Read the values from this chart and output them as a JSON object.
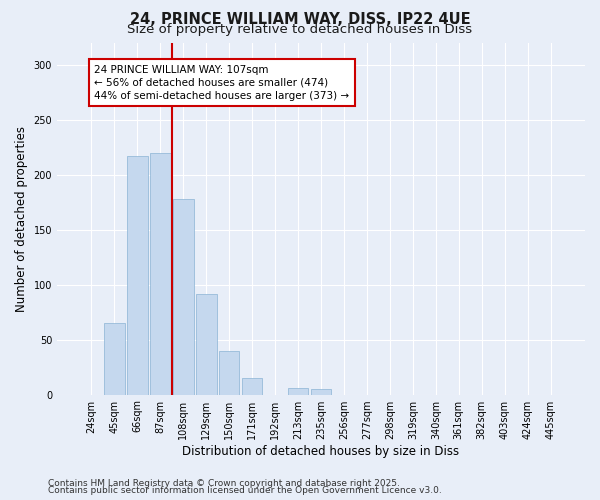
{
  "title_line1": "24, PRINCE WILLIAM WAY, DISS, IP22 4UE",
  "title_line2": "Size of property relative to detached houses in Diss",
  "xlabel": "Distribution of detached houses by size in Diss",
  "ylabel": "Number of detached properties",
  "categories": [
    "24sqm",
    "45sqm",
    "66sqm",
    "87sqm",
    "108sqm",
    "129sqm",
    "150sqm",
    "171sqm",
    "192sqm",
    "213sqm",
    "235sqm",
    "256sqm",
    "277sqm",
    "298sqm",
    "319sqm",
    "340sqm",
    "361sqm",
    "382sqm",
    "403sqm",
    "424sqm",
    "445sqm"
  ],
  "values": [
    0,
    65,
    217,
    220,
    178,
    91,
    40,
    15,
    0,
    6,
    5,
    0,
    0,
    0,
    0,
    0,
    0,
    0,
    0,
    0,
    0
  ],
  "bar_color": "#c5d8ee",
  "bar_edgecolor": "#8ab4d4",
  "background_color": "#e8eef8",
  "grid_color": "#ffffff",
  "annotation_box_color": "#ffffff",
  "annotation_box_edgecolor": "#cc0000",
  "annotation_line1": "24 PRINCE WILLIAM WAY: 107sqm",
  "annotation_line2": "← 56% of detached houses are smaller (474)",
  "annotation_line3": "44% of semi-detached houses are larger (373) →",
  "vline_color": "#cc0000",
  "ylim": [
    0,
    320
  ],
  "yticks": [
    0,
    50,
    100,
    150,
    200,
    250,
    300
  ],
  "footnote1": "Contains HM Land Registry data © Crown copyright and database right 2025.",
  "footnote2": "Contains public sector information licensed under the Open Government Licence v3.0.",
  "title_fontsize": 10.5,
  "subtitle_fontsize": 9.5,
  "axis_label_fontsize": 8.5,
  "tick_fontsize": 7,
  "annotation_fontsize": 7.5,
  "footnote_fontsize": 6.5
}
